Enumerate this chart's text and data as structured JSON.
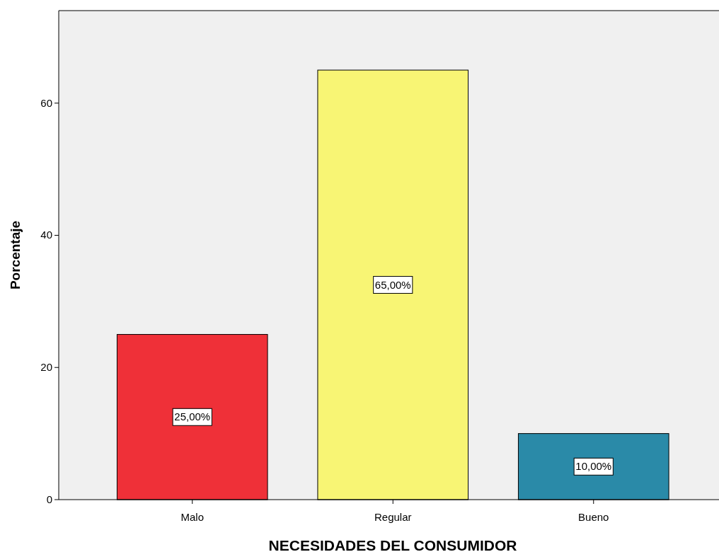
{
  "chart_data": {
    "type": "bar",
    "xlabel": "NECESIDADES DEL CONSUMIDOR",
    "ylabel": "Porcentaje",
    "categories": [
      "Malo",
      "Regular",
      "Bueno"
    ],
    "values": [
      25,
      65,
      10
    ],
    "colors": [
      "#ef3038",
      "#f8f574",
      "#2a8aa8"
    ],
    "value_labels": [
      "25,00%",
      "65,00%",
      "10,00%"
    ],
    "ylim": [
      0,
      74
    ],
    "yticks": [
      0,
      20,
      40,
      60
    ],
    "grid": false
  }
}
